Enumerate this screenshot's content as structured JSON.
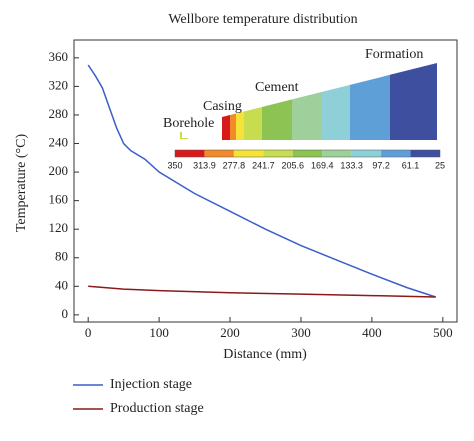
{
  "chart_data": {
    "type": "line",
    "title": "Wellbore temperature distribution",
    "x_label": "Distance (mm)",
    "y_label": "Temperature (°C)",
    "xlim": [
      -20,
      520
    ],
    "xticks": [
      0,
      100,
      200,
      300,
      400,
      500
    ],
    "ylim": [
      -10,
      385
    ],
    "yticks": [
      0,
      40,
      80,
      120,
      160,
      200,
      240,
      280,
      320,
      360
    ],
    "series": [
      {
        "name": "Injection stage",
        "color": "#3a5fc8",
        "x": [
          0,
          10,
          20,
          30,
          40,
          50,
          60,
          80,
          100,
          150,
          200,
          250,
          300,
          350,
          400,
          450,
          490
        ],
        "values": [
          350,
          335,
          318,
          290,
          262,
          240,
          230,
          218,
          200,
          170,
          145,
          120,
          97,
          77,
          57,
          38,
          25
        ]
      },
      {
        "name": "Production stage",
        "color": "#8b1a1a",
        "x": [
          0,
          50,
          100,
          200,
          300,
          400,
          490
        ],
        "values": [
          40,
          36,
          34,
          31,
          29,
          27,
          25
        ]
      }
    ],
    "inset": {
      "labels": [
        "Borehole",
        "Casing",
        "Cement",
        "Formation"
      ],
      "colorbar_ticks": [
        350,
        313.9,
        277.8,
        241.7,
        205.6,
        169.4,
        133.3,
        97.2,
        61.1,
        25
      ],
      "colors": [
        "#d7191c",
        "#f08a2a",
        "#f5e33a",
        "#c8dc50",
        "#8cc352",
        "#9fcf9a",
        "#8fd0d8",
        "#5f9fd8",
        "#3f4fa0"
      ]
    }
  }
}
